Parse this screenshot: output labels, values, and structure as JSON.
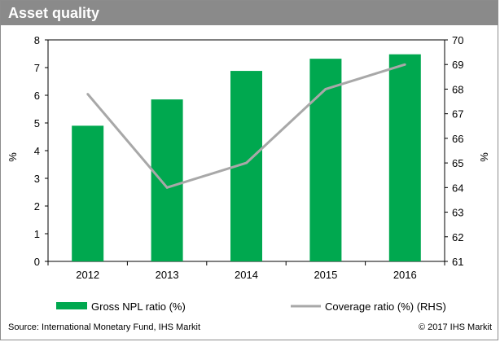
{
  "chart_data": {
    "type": "bar+line",
    "title": "Asset quality",
    "categories": [
      "2012",
      "2013",
      "2014",
      "2015",
      "2016"
    ],
    "series": [
      {
        "name": "Gross NPL ratio (%)",
        "type": "bar",
        "axis": "left",
        "color": "#00a84f",
        "values": [
          4.9,
          5.85,
          6.88,
          7.32,
          7.48
        ]
      },
      {
        "name": "Coverage ratio (%) (RHS)",
        "type": "line",
        "axis": "right",
        "color": "#a8a8a8",
        "values": [
          67.8,
          64.0,
          65.0,
          68.0,
          69.0
        ]
      }
    ],
    "yleft": {
      "label": "%",
      "lim": [
        0,
        8
      ],
      "ticks": [
        "0",
        "1",
        "2",
        "3",
        "4",
        "5",
        "6",
        "7",
        "8"
      ]
    },
    "yright": {
      "label": "%",
      "lim": [
        61,
        70
      ],
      "ticks": [
        "61",
        "62",
        "63",
        "64",
        "65",
        "66",
        "67",
        "68",
        "69",
        "70"
      ]
    },
    "grid": false,
    "legend": "bottom"
  },
  "footer": {
    "source": "Source: International Monetary Fund, IHS Markit",
    "copyright": "© 2017 IHS Markit"
  },
  "colors": {
    "title_bar": "#8a8a8a",
    "bar": "#00a84f",
    "line": "#a8a8a8"
  }
}
